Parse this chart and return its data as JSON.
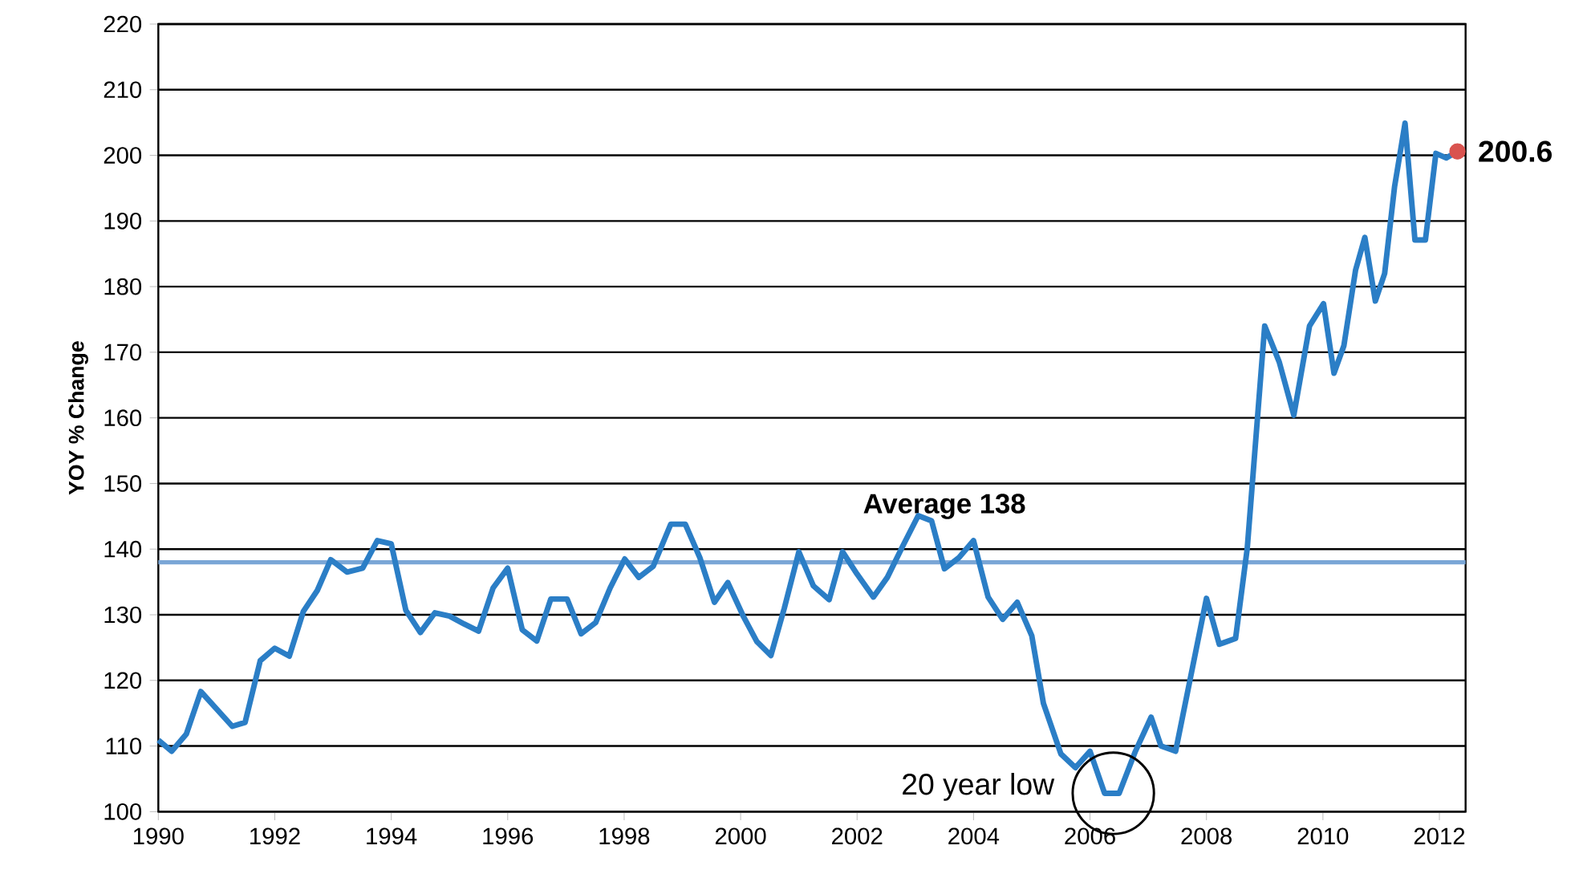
{
  "chart_data": {
    "type": "line",
    "ylabel": "YOY % Change",
    "xlim": [
      1990,
      2012.45
    ],
    "ylim": [
      100,
      220
    ],
    "xticks": [
      1990,
      1992,
      1994,
      1996,
      1998,
      2000,
      2002,
      2004,
      2006,
      2008,
      2010,
      2012
    ],
    "yticks": [
      100,
      110,
      120,
      130,
      140,
      150,
      160,
      170,
      180,
      190,
      200,
      210,
      220
    ],
    "grid": "y",
    "marker": "none",
    "line_style": "solid",
    "series": [
      {
        "color": "#2b7ec6",
        "x": [
          1990.0,
          1990.23,
          1990.48,
          1990.73,
          1991.27,
          1991.49,
          1991.75,
          1992.0,
          1992.25,
          1992.49,
          1992.73,
          1992.96,
          1993.24,
          1993.51,
          1993.76,
          1994.0,
          1994.25,
          1994.5,
          1994.75,
          1995.0,
          1995.25,
          1995.5,
          1995.75,
          1996.0,
          1996.25,
          1996.5,
          1996.74,
          1997.02,
          1997.26,
          1997.51,
          1997.76,
          1998.01,
          1998.25,
          1998.5,
          1998.8,
          1999.05,
          1999.3,
          1999.55,
          1999.78,
          2000.05,
          2000.28,
          2000.52,
          2000.75,
          2001.0,
          2001.25,
          2001.52,
          2001.75,
          2002.0,
          2002.28,
          2002.52,
          2002.78,
          2003.05,
          2003.28,
          2003.5,
          2003.75,
          2004.0,
          2004.25,
          2004.5,
          2004.75,
          2005.0,
          2005.2,
          2005.5,
          2005.75,
          2006.0,
          2006.25,
          2006.5,
          2006.78,
          2007.05,
          2007.22,
          2007.47,
          2008.0,
          2008.22,
          2008.5,
          2008.7,
          2009.0,
          2009.25,
          2009.5,
          2009.77,
          2010.01,
          2010.19,
          2010.36,
          2010.56,
          2010.72,
          2010.9,
          2011.06,
          2011.23,
          2011.41,
          2011.58,
          2011.76,
          2011.94,
          2012.12,
          2012.31
        ],
        "values": [
          110.9,
          109.2,
          111.8,
          118.3,
          113.0,
          113.6,
          123.0,
          124.9,
          123.7,
          130.5,
          133.7,
          138.4,
          136.5,
          137.1,
          141.3,
          140.8,
          130.7,
          127.3,
          130.3,
          129.8,
          128.6,
          127.5,
          134.1,
          137.1,
          127.7,
          126.0,
          132.4,
          132.4,
          127.1,
          128.8,
          134.1,
          138.5,
          135.7,
          137.4,
          143.8,
          143.8,
          138.7,
          131.9,
          134.9,
          129.7,
          125.9,
          123.8,
          131.0,
          139.6,
          134.4,
          132.3,
          139.6,
          136.2,
          132.7,
          135.7,
          140.4,
          145.1,
          144.3,
          137.0,
          138.7,
          141.3,
          132.7,
          129.3,
          131.9,
          126.8,
          116.5,
          108.8,
          106.7,
          109.2,
          102.8,
          102.8,
          109.2,
          114.4,
          110.0,
          109.2,
          132.5,
          125.5,
          126.4,
          140.1,
          174.0,
          168.5,
          160.4,
          174.0,
          177.4,
          166.8,
          171.0,
          182.5,
          187.5,
          177.8,
          182.0,
          195.2,
          204.9,
          187.1,
          187.1,
          200.3,
          199.6,
          200.6
        ]
      },
      {
        "type": "scatter",
        "marker": "circle",
        "color": "#d9534f",
        "x": [
          2012.31
        ],
        "values": [
          200.6
        ],
        "value_labels": [
          "200.6"
        ]
      }
    ],
    "ref_lines": [
      {
        "axis": "y",
        "value": 138,
        "label": "Average 138",
        "color": "#7aa6d6"
      }
    ],
    "annotations": [
      {
        "text": "20 year low",
        "x": 2006.4,
        "y": 102.8
      }
    ]
  }
}
